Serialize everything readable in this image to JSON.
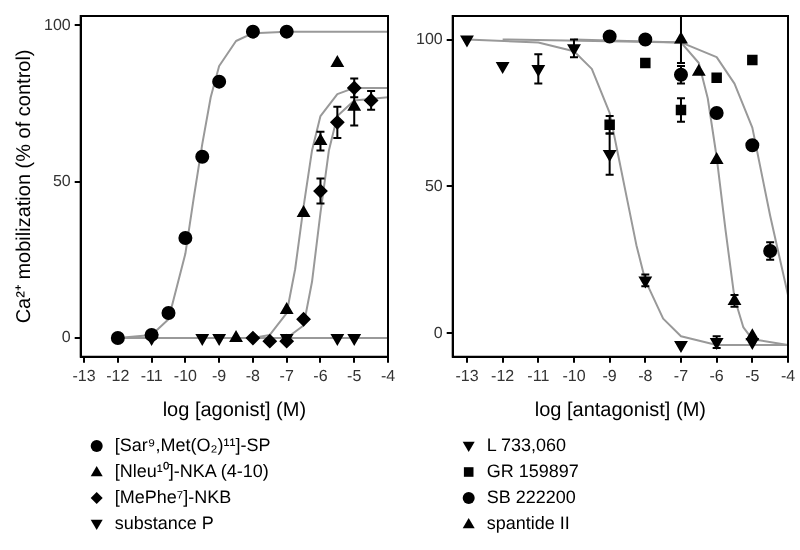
{
  "chart_data": [
    {
      "type": "scatter",
      "xlabel": "log [agonist] (M)",
      "ylabel": "Ca²⁺ mobilization (% of control)",
      "xlim": [
        -13.1,
        -4
      ],
      "xticks": [
        -13,
        -12,
        -11,
        -10,
        -9,
        -8,
        -7,
        -6,
        -5,
        -4
      ],
      "ylim": [
        -6,
        103
      ],
      "yticks": [
        0,
        50,
        100
      ],
      "grid": false,
      "legend": "bottom",
      "series": [
        {
          "name": "[Sar⁹,Met(O₂)¹¹]-SP",
          "color": "#000000",
          "marker": "circle",
          "x": [
            -12,
            -11,
            -10.5,
            -10,
            -9.5,
            -9,
            -8,
            -7
          ],
          "values": [
            0,
            1,
            8,
            32,
            58,
            82,
            98,
            98
          ]
        },
        {
          "name": "[Nleu¹⁰]-NKA (4-10)",
          "color": "#000000",
          "marker": "triangle",
          "x": [
            -8.5,
            -7,
            -6.5,
            -6,
            -5.5,
            -5
          ],
          "values": [
            0,
            9,
            40,
            63,
            88,
            74
          ],
          "errors": [
            null,
            null,
            null,
            3,
            null,
            6
          ]
        },
        {
          "name": "[MePhe⁷]-NKB",
          "color": "#000000",
          "marker": "diamond",
          "x": [
            -8,
            -7.5,
            -7,
            -6.5,
            -6,
            -5.5,
            -5,
            -4.5
          ],
          "values": [
            0,
            -1,
            -1,
            6,
            47,
            69,
            80,
            76
          ],
          "errors": [
            null,
            null,
            null,
            null,
            4,
            5,
            3,
            3
          ]
        },
        {
          "name": "substance P",
          "color": "#000000",
          "marker": "triangle-down",
          "x": [
            -11,
            -9.5,
            -9,
            -7,
            -5.5,
            -5
          ],
          "values": [
            0,
            0,
            0,
            0,
            0,
            0
          ]
        },
        {
          "type": "line",
          "color": "#999999",
          "marker": "none",
          "x": [
            -12,
            -11,
            -10.5,
            -10,
            -9.75,
            -9.5,
            -9.25,
            -9,
            -8.5,
            -8,
            -7,
            -4
          ],
          "values": [
            0,
            1,
            6,
            27,
            45,
            62,
            77,
            87,
            95,
            97.5,
            98,
            98
          ]
        },
        {
          "type": "line",
          "color": "#999999",
          "marker": "none",
          "x": [
            -8,
            -7.5,
            -7,
            -6.75,
            -6.5,
            -6.25,
            -6,
            -5.5,
            -5,
            -4
          ],
          "values": [
            0,
            1,
            8,
            22,
            42,
            60,
            71,
            78,
            80,
            80
          ]
        },
        {
          "type": "line",
          "color": "#999999",
          "marker": "none",
          "x": [
            -8,
            -7,
            -6.5,
            -6.25,
            -6,
            -5.75,
            -5.5,
            -5,
            -4
          ],
          "values": [
            0,
            0,
            4,
            18,
            40,
            60,
            71,
            76,
            77
          ]
        },
        {
          "type": "line",
          "color": "#999999",
          "marker": "none",
          "x": [
            -12,
            -4
          ],
          "values": [
            0,
            0
          ]
        }
      ]
    },
    {
      "type": "scatter",
      "xlabel": "log [antagonist] (M)",
      "xlim": [
        -13.4,
        -4
      ],
      "xticks": [
        -13,
        -12,
        -11,
        -10,
        -9,
        -8,
        -7,
        -6,
        -5,
        -4
      ],
      "ylim": [
        -8,
        108
      ],
      "yticks": [
        0,
        50,
        100
      ],
      "grid": false,
      "legend": "bottom",
      "series": [
        {
          "name": "L 733,060",
          "color": "#000000",
          "marker": "triangle-down",
          "x": [
            -13,
            -12,
            -11,
            -10,
            -9,
            -8,
            -7,
            -6,
            -5
          ],
          "values": [
            100,
            91,
            90,
            97,
            61,
            18,
            -4,
            -3,
            -3
          ],
          "errors": [
            null,
            null,
            5,
            3,
            7,
            2,
            null,
            2,
            null
          ]
        },
        {
          "name": "GR 159897",
          "color": "#000000",
          "marker": "square",
          "x": [
            -9,
            -8,
            -7,
            -6,
            -5
          ],
          "values": [
            71,
            92,
            76,
            87,
            93
          ],
          "errors": [
            3,
            null,
            4,
            null,
            null
          ]
        },
        {
          "name": "SB 222200",
          "color": "#000000",
          "marker": "circle",
          "x": [
            -9,
            -8,
            -7,
            -6,
            -5,
            -4.5
          ],
          "values": [
            101,
            100,
            88,
            75,
            64,
            28
          ],
          "errors": [
            null,
            null,
            3,
            null,
            null,
            3
          ]
        },
        {
          "name": "spantide II",
          "color": "#000000",
          "marker": "triangle",
          "x": [
            -7,
            -6.5,
            -6,
            -5.5,
            -5
          ],
          "values": [
            100,
            89,
            59,
            11,
            -1
          ],
          "errors": [
            8,
            null,
            null,
            2,
            null
          ]
        },
        {
          "type": "line",
          "color": "#999999",
          "marker": "none",
          "x": [
            -13,
            -11,
            -10,
            -9.5,
            -9,
            -8.75,
            -8.5,
            -8.25,
            -8,
            -7.5,
            -7,
            -6,
            -4
          ],
          "values": [
            100,
            99,
            96,
            90,
            75,
            60,
            45,
            30,
            18,
            5,
            -1,
            -4,
            -4
          ]
        },
        {
          "type": "line",
          "color": "#999999",
          "marker": "none",
          "x": [
            -12,
            -7,
            -6.5,
            -6.25,
            -6,
            -5.75,
            -5.5,
            -5.25,
            -5,
            -4
          ],
          "values": [
            100,
            99,
            92,
            80,
            60,
            35,
            12,
            2,
            -2,
            -4
          ]
        },
        {
          "type": "line",
          "color": "#999999",
          "marker": "none",
          "x": [
            -10,
            -7,
            -6,
            -5.5,
            -5,
            -4.5,
            -4
          ],
          "values": [
            100,
            99,
            94,
            85,
            70,
            40,
            13
          ]
        }
      ]
    }
  ]
}
